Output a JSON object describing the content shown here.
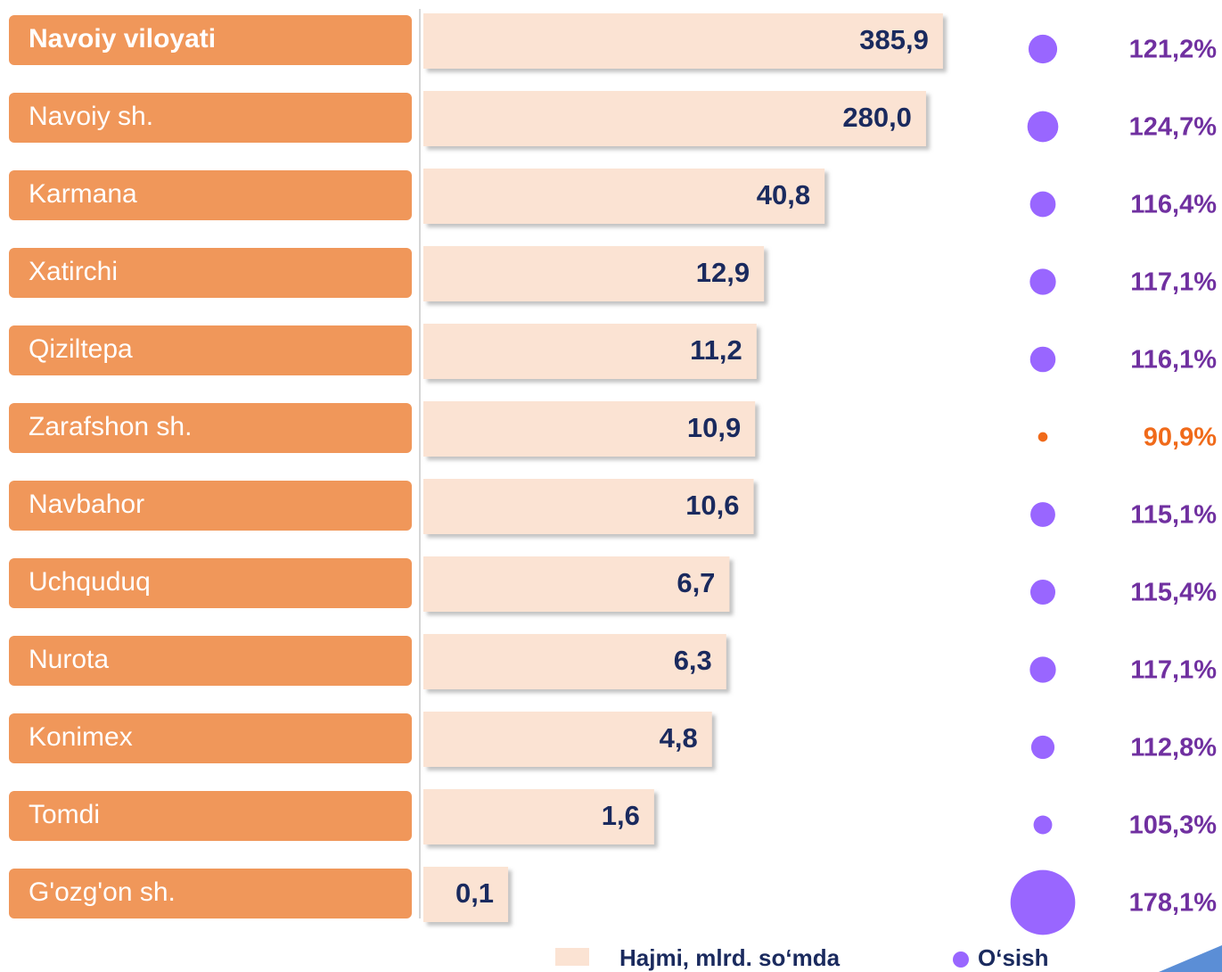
{
  "chart_data": {
    "type": "bar",
    "categories": [
      "Navoiy viloyati",
      "Navoiy sh.",
      "Karmana",
      "Xatirchi",
      "Qiziltepa",
      "Zarafshon sh.",
      "Navbahor",
      "Uchquduq",
      "Nurota",
      "Konimex",
      "Tomdi",
      "G'ozg'on sh."
    ],
    "series": [
      {
        "name": "Hajmi, mlrd. so‘mda",
        "color": "#fbe3d3",
        "values": [
          385.9,
          280.0,
          40.8,
          12.9,
          11.2,
          10.9,
          10.6,
          6.7,
          6.3,
          4.8,
          1.6,
          0.1
        ],
        "value_labels": [
          "385,9",
          "280,0",
          "40,8",
          "12,9",
          "11,2",
          "10,9",
          "10,6",
          "6,7",
          "6,3",
          "4,8",
          "1,6",
          "0,1"
        ]
      },
      {
        "name": "O‘sish",
        "color": "#9966ff",
        "values": [
          121.2,
          124.7,
          116.4,
          117.1,
          116.1,
          90.9,
          115.1,
          115.4,
          117.1,
          112.8,
          105.3,
          178.1
        ],
        "value_labels": [
          "121,2%",
          "124,7%",
          "116,4%",
          "117,1%",
          "116,1%",
          "90,9%",
          "115,1%",
          "115,4%",
          "117,1%",
          "112,8%",
          "105,3%",
          "178,1%"
        ],
        "point_colors": [
          "#9966ff",
          "#9966ff",
          "#9966ff",
          "#9966ff",
          "#9966ff",
          "#f06a1a",
          "#9966ff",
          "#9966ff",
          "#9966ff",
          "#9966ff",
          "#9966ff",
          "#9966ff"
        ],
        "label_colors": [
          "#7030a0",
          "#7030a0",
          "#7030a0",
          "#7030a0",
          "#7030a0",
          "#f06a1a",
          "#7030a0",
          "#7030a0",
          "#7030a0",
          "#7030a0",
          "#7030a0",
          "#7030a0"
        ]
      }
    ],
    "xscale": "log",
    "xlim": [
      0.02,
      400
    ],
    "sizelim": [
      90,
      180
    ],
    "category_color": "#f0975a",
    "value_label_color": "#1a2a5e"
  }
}
